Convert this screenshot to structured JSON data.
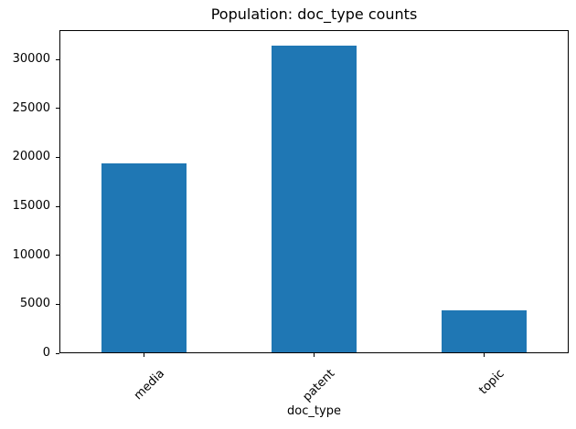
{
  "chart_data": {
    "type": "bar",
    "title": "Population: doc_type counts",
    "xlabel": "doc_type",
    "ylabel": "",
    "categories": [
      "media",
      "patent",
      "topic"
    ],
    "values": [
      19400,
      31400,
      4400
    ],
    "ylim": [
      0,
      33000
    ],
    "yticks": [
      0,
      5000,
      10000,
      15000,
      20000,
      25000,
      30000
    ],
    "ytick_labels": [
      "0",
      "5000",
      "10000",
      "15000",
      "20000",
      "25000",
      "30000"
    ],
    "xtick_rotation_deg": 45,
    "bar_relative_width": 0.5,
    "bar_color": "#1f77b4",
    "axis_color": "#000000",
    "text_color": "#000000",
    "background_color": "#ffffff",
    "grid": false,
    "legend": null
  }
}
